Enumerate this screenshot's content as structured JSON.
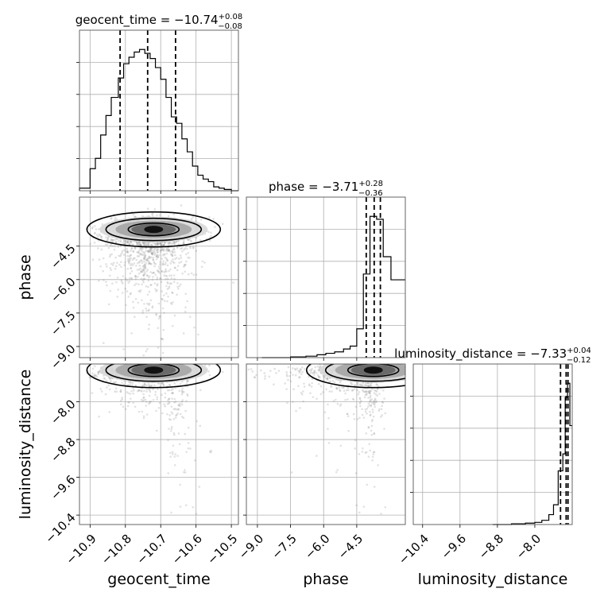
{
  "chart_data": {
    "type": "corner",
    "parameters": [
      {
        "name": "geocent_time",
        "xlabel": "geocent_time",
        "title": {
          "prefix": "geocent_time = ",
          "value": "−10.74",
          "plus": "+0.08",
          "minus": "−0.08"
        },
        "range": [
          -10.93,
          -10.48
        ],
        "ticks": [
          -10.9,
          -10.8,
          -10.7,
          -10.6,
          -10.5
        ],
        "tick_labels": [
          "−10.9",
          "−10.8",
          "−10.7",
          "−10.6",
          "−10.5"
        ],
        "quantiles": [
          -10.815,
          -10.737,
          -10.658
        ],
        "hist": {
          "edges": [
            -10.93,
            -10.9,
            -10.885,
            -10.87,
            -10.855,
            -10.84,
            -10.82,
            -10.805,
            -10.79,
            -10.775,
            -10.76,
            -10.745,
            -10.73,
            -10.715,
            -10.7,
            -10.685,
            -10.67,
            -10.655,
            -10.64,
            -10.625,
            -10.61,
            -10.595,
            -10.58,
            -10.565,
            -10.55,
            -10.535,
            -10.52,
            -10.5,
            -10.48
          ],
          "counts": [
            0.02,
            0.17,
            0.25,
            0.43,
            0.58,
            0.72,
            0.87,
            0.98,
            1.03,
            1.07,
            1.09,
            1.06,
            1.02,
            0.95,
            0.86,
            0.72,
            0.57,
            0.52,
            0.4,
            0.3,
            0.19,
            0.12,
            0.09,
            0.07,
            0.03,
            0.02,
            0.01,
            0.0
          ]
        }
      },
      {
        "name": "phase",
        "xlabel": "phase",
        "ylabel": "phase",
        "title": {
          "prefix": "phase = ",
          "value": "−3.71",
          "plus": "+0.28",
          "minus": "−0.36"
        },
        "range": [
          -9.5,
          -2.3
        ],
        "ticks": [
          -9.0,
          -7.5,
          -6.0,
          -4.5
        ],
        "tick_labels": [
          "−9.0",
          "−7.5",
          "−6.0",
          "−4.5"
        ],
        "quantiles": [
          -4.07,
          -3.71,
          -3.43
        ],
        "hist": {
          "edges": [
            -8.8,
            -7.5,
            -6.8,
            -6.3,
            -5.9,
            -5.5,
            -5.1,
            -4.8,
            -4.5,
            -4.2,
            -3.9,
            -3.6,
            -3.3,
            -2.95,
            -2.6,
            -2.3
          ],
          "counts": [
            0.0,
            0.005,
            0.01,
            0.02,
            0.03,
            0.04,
            0.06,
            0.08,
            0.2,
            0.58,
            0.98,
            0.96,
            0.7,
            0.54,
            0.54
          ]
        }
      },
      {
        "name": "luminosity_distance",
        "xlabel": "luminosity_distance",
        "ylabel": "luminosity_distance",
        "title": {
          "prefix": "luminosity_distance = ",
          "value": "−7.33",
          "plus": "+0.04",
          "minus": "−0.12"
        },
        "range": [
          -10.6,
          -7.2
        ],
        "ticks": [
          -10.4,
          -9.6,
          -8.8,
          -8.0
        ],
        "tick_labels": [
          "−10.4",
          "−9.6",
          "−8.8",
          "−8.0"
        ],
        "quantiles": [
          -7.45,
          -7.33,
          -7.29
        ],
        "hist": {
          "edges": [
            -8.9,
            -8.5,
            -8.2,
            -8.0,
            -7.85,
            -7.7,
            -7.6,
            -7.5,
            -7.4,
            -7.35,
            -7.3,
            -7.25,
            -7.2
          ],
          "counts": [
            0.0,
            0.005,
            0.01,
            0.015,
            0.03,
            0.07,
            0.14,
            0.38,
            0.5,
            0.9,
            1.0,
            0.7
          ]
        }
      }
    ],
    "grid": true
  }
}
